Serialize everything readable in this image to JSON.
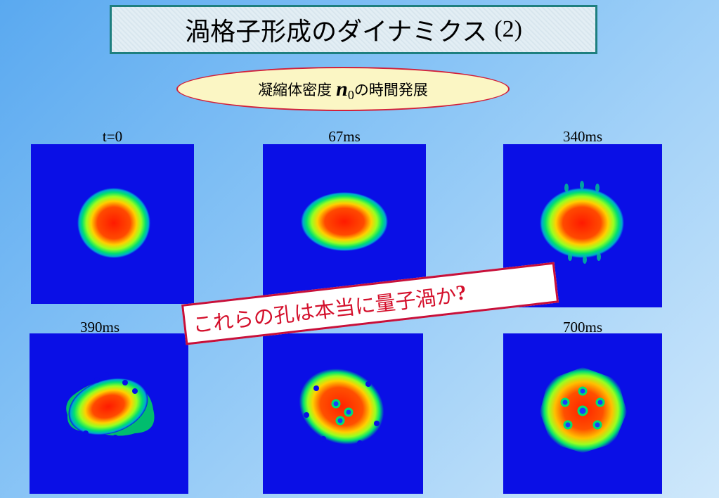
{
  "title": {
    "main": "渦格子形成のダイナミクス",
    "paren": "(2)"
  },
  "subtitle": {
    "before": "凝縮体密度",
    "variable": "n",
    "subscript": "0",
    "after": "の時間発展"
  },
  "panels": [
    {
      "label": "t=0"
    },
    {
      "label": "67ms"
    },
    {
      "label": "340ms"
    },
    {
      "label": "390ms"
    },
    {
      "label": ""
    },
    {
      "label": "700ms"
    }
  ],
  "callout": {
    "text": "これらの孔は本当に量子渦か",
    "mark": "?"
  },
  "colors": {
    "background_blue": "#0a0fe6",
    "callout_red": "#d4102c",
    "title_border": "#1e7f7f"
  }
}
